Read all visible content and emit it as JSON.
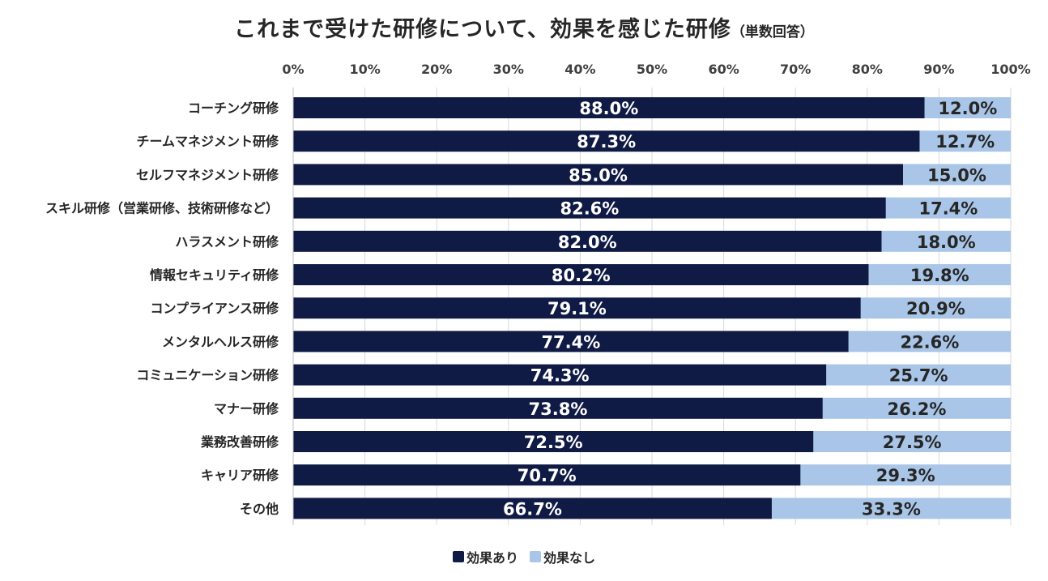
{
  "chart_data": {
    "type": "bar",
    "orientation": "horizontal",
    "stacked": "percent",
    "title": "これまで受けた研修について、効果を感じた研修",
    "subtitle": "（単数回答）",
    "xticks": [
      "0%",
      "10%",
      "20%",
      "30%",
      "40%",
      "50%",
      "60%",
      "70%",
      "80%",
      "90%",
      "100%"
    ],
    "xlim": [
      0,
      100
    ],
    "categories": [
      "コーチング研修",
      "チームマネジメント研修",
      "セルフマネジメント研修",
      "スキル研修（営業研修、技術研修など）",
      "ハラスメント研修",
      "情報セキュリティ研修",
      "コンプライアンス研修",
      "メンタルヘルス研修",
      "コミュニケーション研修",
      "マナー研修",
      "業務改善研修",
      "キャリア研修",
      "その他"
    ],
    "series": [
      {
        "name": "効果あり",
        "color": "#0f1a45",
        "values": [
          88.0,
          87.3,
          85.0,
          82.6,
          82.0,
          80.2,
          79.1,
          77.4,
          74.3,
          73.8,
          72.5,
          70.7,
          66.7
        ],
        "labels": [
          "88.0%",
          "87.3%",
          "85.0%",
          "82.6%",
          "82.0%",
          "80.2%",
          "79.1%",
          "77.4%",
          "74.3%",
          "73.8%",
          "72.5%",
          "70.7%",
          "66.7%"
        ]
      },
      {
        "name": "効果なし",
        "color": "#a9c6e8",
        "values": [
          12.0,
          12.7,
          15.0,
          17.4,
          18.0,
          19.8,
          20.9,
          22.6,
          25.7,
          26.2,
          27.5,
          29.3,
          33.3
        ],
        "labels": [
          "12.0%",
          "12.7%",
          "15.0%",
          "17.4%",
          "18.0%",
          "19.8%",
          "20.9%",
          "22.6%",
          "25.7%",
          "26.2%",
          "27.5%",
          "29.3%",
          "33.3%"
        ]
      }
    ],
    "legend_position": "bottom",
    "grid": true
  }
}
